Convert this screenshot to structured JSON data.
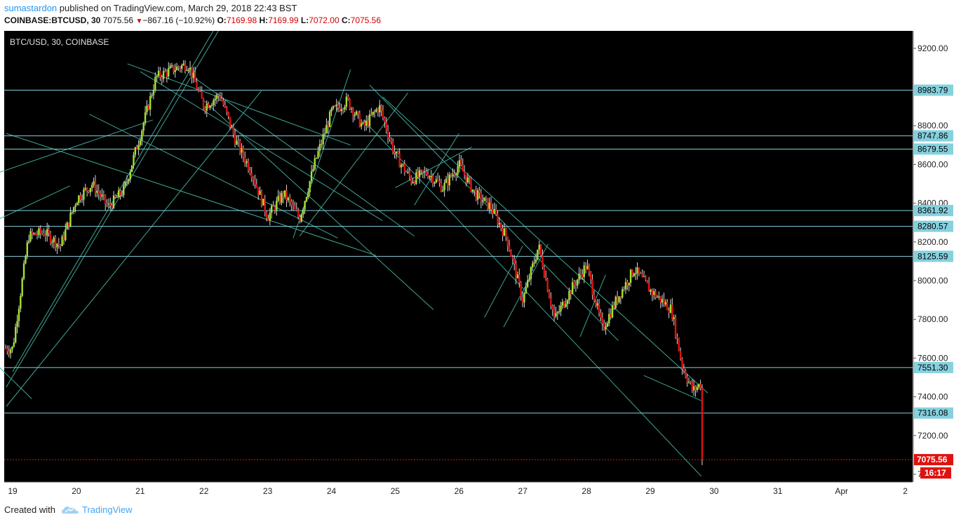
{
  "header": {
    "user": "sumastardon",
    "published_text": " published on TradingView.com, March 29, 2018 22:43 BST",
    "symbol": "COINBASE:BTCUSD, 30",
    "last": "7075.56",
    "change": "−867.16 (−10.92%)",
    "o_label": "O:",
    "o_value": "7169.98",
    "h_label": "H:",
    "h_value": "7169.99",
    "l_label": "L:",
    "l_value": "7072.00",
    "c_label": "C:",
    "c_value": "7075.56"
  },
  "footer": {
    "created_label": "Created with",
    "brand": "TradingView"
  },
  "chart_data": {
    "type": "candlestick",
    "title": "BTC/USD, 30, COINBASE",
    "x_ticks": [
      "19",
      "20",
      "21",
      "22",
      "23",
      "24",
      "25",
      "26",
      "27",
      "28",
      "29",
      "30",
      "31",
      "Apr",
      "2"
    ],
    "y_ticks": [
      "9200.00",
      "8800.00",
      "8600.00",
      "8400.00",
      "8200.00",
      "8000.00",
      "7800.00",
      "7600.00",
      "7400.00",
      "7200.00",
      "7000.00"
    ],
    "ylim": [
      6960,
      9290
    ],
    "price_levels": [
      8983.79,
      8747.86,
      8679.55,
      8361.92,
      8280.57,
      8125.59,
      7551.3,
      7316.08
    ],
    "price_level_labels": [
      "8983.79",
      "8747.86",
      "8679.55",
      "8361.92",
      "8280.57",
      "8125.59",
      "7551.30",
      "7316.08"
    ],
    "current_price": "7075.56",
    "countdown": "16:17",
    "colors": {
      "up": "#a5e32d",
      "down": "#e0120f",
      "level_line": "#86d1de",
      "trend_line": "#3fa595",
      "current_line": "#e0120f",
      "background": "#000000"
    },
    "approx_path": [
      [
        "19",
        7650
      ],
      [
        "19",
        8230
      ],
      [
        "19",
        8250
      ],
      [
        "19",
        8180
      ],
      [
        "20",
        8420
      ],
      [
        "20",
        8500
      ],
      [
        "20",
        8380
      ],
      [
        "20",
        8470
      ],
      [
        "21",
        8750
      ],
      [
        "21",
        9050
      ],
      [
        "21",
        9090
      ],
      [
        "21",
        9120
      ],
      [
        "22",
        8900
      ],
      [
        "22",
        8960
      ],
      [
        "22",
        8720
      ],
      [
        "22",
        8560
      ],
      [
        "23",
        8330
      ],
      [
        "23",
        8450
      ],
      [
        "23",
        8320
      ],
      [
        "23",
        8620
      ],
      [
        "24",
        8870
      ],
      [
        "24",
        8930
      ],
      [
        "24",
        8790
      ],
      [
        "24",
        8900
      ],
      [
        "25",
        8650
      ],
      [
        "25",
        8520
      ],
      [
        "25",
        8560
      ],
      [
        "25",
        8480
      ],
      [
        "26",
        8600
      ],
      [
        "26",
        8450
      ],
      [
        "26",
        8380
      ],
      [
        "26",
        8220
      ],
      [
        "27",
        7900
      ],
      [
        "27",
        8180
      ],
      [
        "27",
        7800
      ],
      [
        "27",
        7950
      ],
      [
        "28",
        8080
      ],
      [
        "28",
        7750
      ],
      [
        "28",
        7920
      ],
      [
        "28",
        8060
      ],
      [
        "29",
        7950
      ],
      [
        "29",
        7900
      ],
      [
        "29",
        7850
      ],
      [
        "29",
        7560
      ],
      [
        "29",
        7430
      ],
      [
        "29",
        7480
      ],
      [
        "30",
        7076
      ]
    ],
    "grid": false
  }
}
